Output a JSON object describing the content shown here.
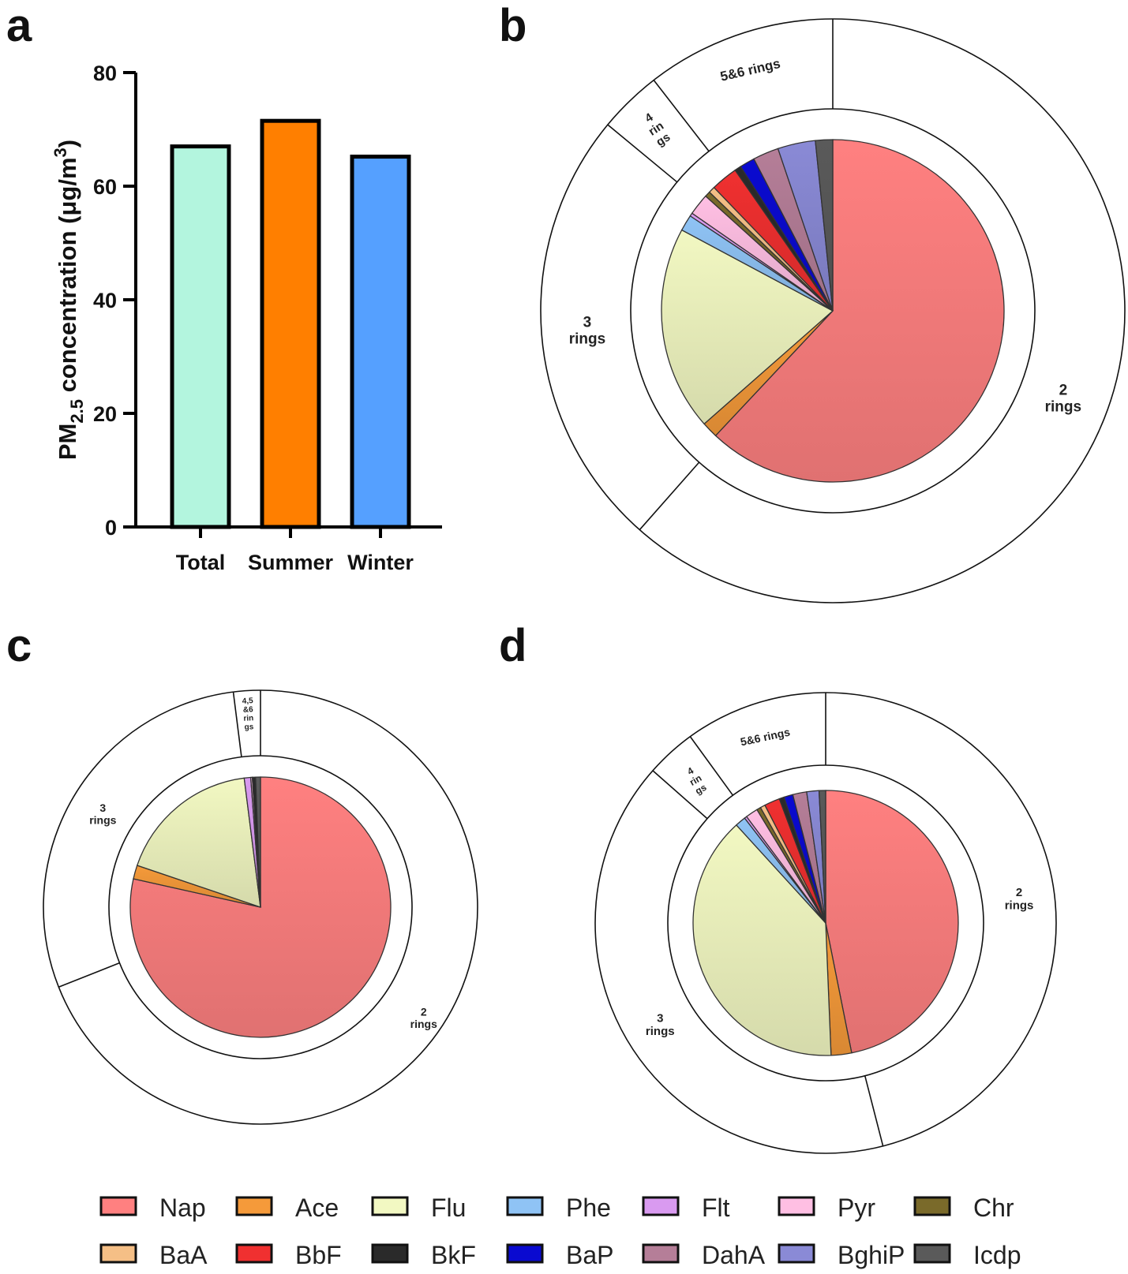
{
  "panels": [
    "a",
    "b",
    "c",
    "d"
  ],
  "chart_data": [
    {
      "panel": "a",
      "type": "bar",
      "title": "",
      "categories": [
        "Total",
        "Summer",
        "Winter"
      ],
      "values": [
        67,
        71.5,
        65.2
      ],
      "colors": [
        "#b3f5de",
        "#ff7f00",
        "#55a0ff"
      ],
      "xlabel": "",
      "ylabel": "PM2.5 concentration (μg/m3)",
      "ylabel_parts": {
        "pre": "PM",
        "sub": "2.5",
        "mid": " concentration (μg/m",
        "sup": "3",
        "post": ")"
      },
      "ylim": [
        0,
        80
      ],
      "yticks": [
        0,
        20,
        40,
        60,
        80
      ],
      "grid": false
    },
    {
      "panel": "b",
      "type": "pie",
      "inner": {
        "labels": [
          "Nap",
          "Ace",
          "Flu",
          "Phe",
          "Flt",
          "Pyr",
          "Chr",
          "BaA",
          "BbF",
          "BkF",
          "BaP",
          "DahA",
          "BghiP",
          "Icdp"
        ],
        "values": [
          61,
          1.5,
          19,
          1.5,
          0.3,
          2.0,
          0.5,
          0.6,
          2.5,
          0.6,
          1.4,
          2.4,
          3.5,
          1.6
        ]
      },
      "outer": {
        "labels": [
          "2 rings",
          "3 rings",
          "4 rings",
          "5&6 rings"
        ],
        "label_lines": [
          [
            "2",
            "rings"
          ],
          [
            "3",
            "rings"
          ],
          [
            "4",
            "rin",
            "gs"
          ],
          [
            "5&6 rings"
          ]
        ],
        "values": [
          61.5,
          24.5,
          3.5,
          10.5
        ]
      }
    },
    {
      "panel": "c",
      "type": "pie",
      "inner": {
        "labels": [
          "Nap",
          "Ace",
          "Flu",
          "Phe",
          "Flt",
          "Pyr",
          "Chr",
          "BaA",
          "BbF",
          "BkF",
          "BaP",
          "DahA",
          "BghiP",
          "Icdp"
        ],
        "values": [
          78.5,
          1.7,
          17.8,
          0,
          0.8,
          0.2,
          0,
          0,
          0,
          0.4,
          0,
          0,
          0,
          0.6
        ]
      },
      "outer": {
        "labels": [
          "2 rings",
          "3 rings",
          "4,5&6 rings"
        ],
        "label_lines": [
          [
            "2",
            "rings"
          ],
          [
            "3",
            "rings"
          ],
          [
            "4,5",
            "&6",
            "rin",
            "gs"
          ]
        ],
        "values": [
          69,
          29,
          2
        ]
      }
    },
    {
      "panel": "d",
      "type": "pie",
      "inner": {
        "labels": [
          "Nap",
          "Ace",
          "Flu",
          "Phe",
          "Flt",
          "Pyr",
          "Chr",
          "BaA",
          "BbF",
          "BkF",
          "BaP",
          "DahA",
          "BghiP",
          "Icdp"
        ],
        "values": [
          47,
          2.5,
          39,
          1.3,
          0.3,
          1.5,
          0.5,
          0.6,
          1.9,
          0.6,
          1.1,
          1.7,
          1.5,
          0.8
        ]
      },
      "outer": {
        "labels": [
          "2 rings",
          "3 rings",
          "4 rings",
          "5&6 rings"
        ],
        "label_lines": [
          [
            "2",
            "rings"
          ],
          [
            "3",
            "rings"
          ],
          [
            "4",
            "rin",
            "gs"
          ],
          [
            "5&6 rings"
          ]
        ],
        "values": [
          46,
          40.5,
          3.5,
          10
        ]
      }
    }
  ],
  "legend": {
    "items": [
      {
        "label": "Nap",
        "color": "#ff8080"
      },
      {
        "label": "Ace",
        "color": "#f59a3a"
      },
      {
        "label": "Flu",
        "color": "#f2f8c2"
      },
      {
        "label": "Phe",
        "color": "#8fc3f5"
      },
      {
        "label": "Flt",
        "color": "#d99af0"
      },
      {
        "label": "Pyr",
        "color": "#ffbfe3"
      },
      {
        "label": "Chr",
        "color": "#7a6a2a"
      },
      {
        "label": "BaA",
        "color": "#f5bf86"
      },
      {
        "label": "BbF",
        "color": "#f03030"
      },
      {
        "label": "BkF",
        "color": "#2a2a2a"
      },
      {
        "label": "BaP",
        "color": "#0a0ad0"
      },
      {
        "label": "DahA",
        "color": "#b57e98"
      },
      {
        "label": "BghiP",
        "color": "#8a8ad6"
      },
      {
        "label": "Icdp",
        "color": "#5a5a5a"
      }
    ]
  }
}
